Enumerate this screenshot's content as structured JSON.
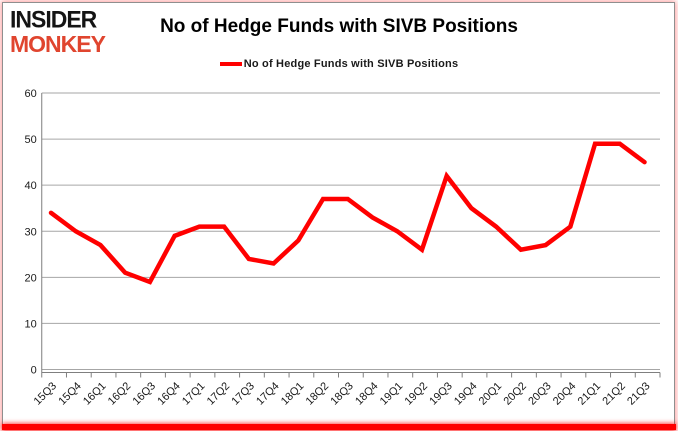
{
  "brand": {
    "line1": "INSIDER",
    "line2": "MONKEY"
  },
  "header": {
    "title": "No of Hedge Funds with SIVB Positions"
  },
  "legend": {
    "label": "No of Hedge Funds with SIVB Positions",
    "line_color": "#ff0000"
  },
  "colors": {
    "series_red": "#ff0000",
    "gridline": "#a6a6a6",
    "axis": "#7f7f7f",
    "logo_black": "#141414",
    "logo_red": "#e0452f",
    "bottom_bar_red": "#fe0000"
  },
  "chart_data": {
    "type": "line",
    "title": "No of Hedge Funds with SIVB Positions",
    "categories": [
      "15Q3",
      "15Q4",
      "16Q1",
      "16Q2",
      "16Q3",
      "16Q4",
      "17Q1",
      "17Q2",
      "17Q3",
      "17Q4",
      "18Q1",
      "18Q2",
      "18Q3",
      "18Q4",
      "19Q1",
      "19Q2",
      "19Q3",
      "19Q4",
      "20Q1",
      "20Q2",
      "20Q3",
      "20Q4",
      "21Q1",
      "21Q2",
      "21Q3"
    ],
    "series": [
      {
        "name": "No of Hedge Funds with SIVB Positions",
        "color": "#ff0000",
        "values": [
          34,
          30,
          27,
          21,
          19,
          29,
          31,
          31,
          24,
          23,
          28,
          37,
          37,
          33,
          30,
          26,
          42,
          35,
          31,
          26,
          27,
          31,
          49,
          49,
          45
        ]
      }
    ],
    "xlabel": "",
    "ylabel": "",
    "ylim": [
      0,
      60
    ],
    "yticks": [
      0,
      10,
      20,
      30,
      40,
      50,
      60
    ],
    "grid": "horizontal",
    "legend_position": "top-center"
  }
}
